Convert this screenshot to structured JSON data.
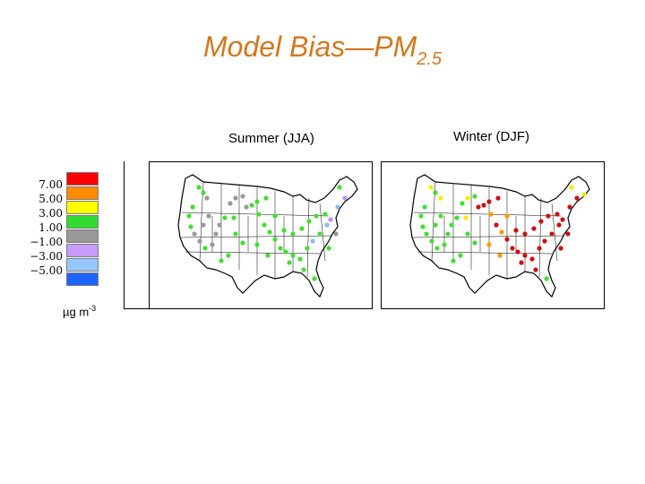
{
  "title": {
    "main": "Model Bias—PM",
    "sub": "2.5"
  },
  "panels": [
    {
      "label": "Summer (JJA)"
    },
    {
      "label": "Winter (DJF)"
    }
  ],
  "legend": {
    "labels": [
      "7.00",
      "5.00",
      "3.00",
      "1.00",
      "−1.00",
      "−3.00",
      "−5.00"
    ],
    "colors": [
      "#ff0000",
      "#ff8c00",
      "#ffff00",
      "#32dc32",
      "#999999",
      "#c89bff",
      "#96c8ff",
      "#1e64ff"
    ],
    "units_base": "µg m",
    "units_exp": "-3"
  },
  "colors": {
    "title": "#d2781e"
  }
}
